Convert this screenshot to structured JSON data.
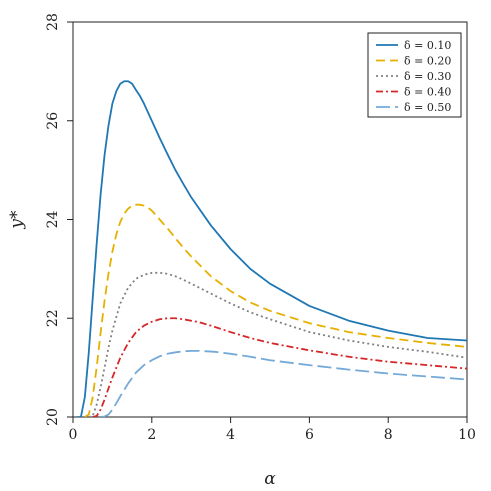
{
  "chart_data": {
    "type": "line",
    "title": "",
    "xlabel": "α",
    "ylabel": "y*",
    "xlim": [
      0,
      10
    ],
    "ylim": [
      20,
      28
    ],
    "xticks": [
      0,
      2,
      4,
      6,
      8,
      10
    ],
    "yticks": [
      20,
      22,
      24,
      26,
      28
    ],
    "grid": false,
    "legend_position": "top-right",
    "series": [
      {
        "name": "δ = 0.10",
        "color": "#1f77b4",
        "dash": "solid",
        "x": [
          0.1,
          0.2,
          0.3,
          0.4,
          0.5,
          0.6,
          0.7,
          0.8,
          0.9,
          1.0,
          1.1,
          1.2,
          1.3,
          1.4,
          1.5,
          1.6,
          1.7,
          1.8,
          2.0,
          2.2,
          2.4,
          2.6,
          2.8,
          3.0,
          3.5,
          4.0,
          4.5,
          5.0,
          6.0,
          7.0,
          8.0,
          9.0,
          10.0
        ],
        "y": [
          20.0,
          20.0,
          20.4,
          21.3,
          22.4,
          23.5,
          24.5,
          25.3,
          25.9,
          26.35,
          26.6,
          26.75,
          26.8,
          26.8,
          26.75,
          26.62,
          26.5,
          26.35,
          26.0,
          25.65,
          25.32,
          25.0,
          24.72,
          24.45,
          23.88,
          23.4,
          23.0,
          22.7,
          22.25,
          21.95,
          21.75,
          21.6,
          21.55
        ]
      },
      {
        "name": "δ = 0.20",
        "color": "#e6b000",
        "dash": "dashed",
        "x": [
          0.3,
          0.4,
          0.5,
          0.6,
          0.7,
          0.8,
          0.9,
          1.0,
          1.1,
          1.2,
          1.3,
          1.4,
          1.5,
          1.6,
          1.7,
          1.8,
          1.9,
          2.0,
          2.2,
          2.4,
          2.6,
          2.8,
          3.0,
          3.5,
          4.0,
          4.5,
          5.0,
          6.0,
          7.0,
          8.0,
          9.0,
          10.0
        ],
        "y": [
          20.0,
          20.05,
          20.4,
          21.0,
          21.7,
          22.35,
          22.9,
          23.35,
          23.7,
          23.95,
          24.12,
          24.22,
          24.28,
          24.3,
          24.3,
          24.28,
          24.24,
          24.18,
          24.0,
          23.82,
          23.62,
          23.43,
          23.25,
          22.85,
          22.55,
          22.32,
          22.15,
          21.9,
          21.72,
          21.6,
          21.5,
          21.42
        ]
      },
      {
        "name": "δ = 0.30",
        "color": "#808080",
        "dash": "dotted",
        "x": [
          0.4,
          0.5,
          0.6,
          0.7,
          0.8,
          0.9,
          1.0,
          1.2,
          1.4,
          1.6,
          1.8,
          2.0,
          2.2,
          2.4,
          2.6,
          2.8,
          3.0,
          3.5,
          4.0,
          4.5,
          5.0,
          6.0,
          7.0,
          8.0,
          9.0,
          10.0
        ],
        "y": [
          20.0,
          20.02,
          20.25,
          20.6,
          21.0,
          21.4,
          21.75,
          22.3,
          22.62,
          22.8,
          22.88,
          22.92,
          22.92,
          22.9,
          22.85,
          22.78,
          22.7,
          22.5,
          22.3,
          22.12,
          21.98,
          21.72,
          21.55,
          21.42,
          21.32,
          21.2
        ]
      },
      {
        "name": "δ = 0.40",
        "color": "#d62728",
        "dash": "dashdot",
        "x": [
          0.5,
          0.6,
          0.7,
          0.8,
          0.9,
          1.0,
          1.2,
          1.4,
          1.6,
          1.8,
          2.0,
          2.2,
          2.4,
          2.6,
          2.8,
          3.0,
          3.2,
          3.5,
          4.0,
          4.5,
          5.0,
          6.0,
          7.0,
          8.0,
          9.0,
          10.0
        ],
        "y": [
          20.0,
          20.02,
          20.15,
          20.35,
          20.58,
          20.8,
          21.2,
          21.5,
          21.72,
          21.85,
          21.93,
          21.98,
          22.0,
          22.0,
          21.98,
          21.95,
          21.92,
          21.85,
          21.72,
          21.6,
          21.5,
          21.35,
          21.22,
          21.12,
          21.05,
          20.98
        ]
      },
      {
        "name": "δ = 0.50",
        "color": "#74a9d8",
        "dash": "longdash",
        "x": [
          0.7,
          0.8,
          0.9,
          1.0,
          1.1,
          1.2,
          1.4,
          1.6,
          1.8,
          2.0,
          2.2,
          2.4,
          2.6,
          2.8,
          3.0,
          3.2,
          3.4,
          3.6,
          4.0,
          4.5,
          5.0,
          6.0,
          7.0,
          8.0,
          9.0,
          10.0
        ],
        "y": [
          20.0,
          20.01,
          20.05,
          20.15,
          20.28,
          20.42,
          20.68,
          20.9,
          21.05,
          21.15,
          21.23,
          21.28,
          21.31,
          21.33,
          21.34,
          21.34,
          21.33,
          21.32,
          21.28,
          21.22,
          21.15,
          21.05,
          20.96,
          20.88,
          20.82,
          20.76
        ]
      }
    ]
  }
}
